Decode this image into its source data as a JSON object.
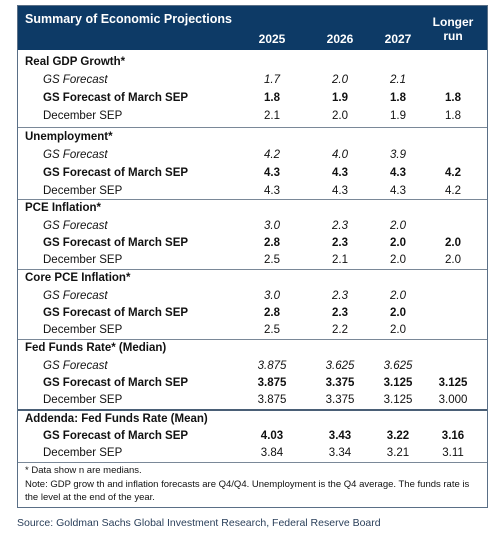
{
  "header": {
    "title": "Summary of Economic Projections",
    "columns": [
      "2025",
      "2026",
      "2027"
    ],
    "longer_run_line1": "Longer",
    "longer_run_line2": "run"
  },
  "labels": {
    "gs_forecast": "GS Forecast",
    "gs_forecast_march": "GS Forecast of March SEP",
    "december_sep": "December SEP"
  },
  "sections": [
    {
      "title": "Real GDP Growth*",
      "gs_forecast": [
        "1.7",
        "2.0",
        "2.1",
        ""
      ],
      "gs_march": [
        "1.8",
        "1.9",
        "1.8",
        "1.8"
      ],
      "december": [
        "2.1",
        "2.0",
        "1.9",
        "1.8"
      ]
    },
    {
      "title": "Unemployment*",
      "gs_forecast": [
        "4.2",
        "4.0",
        "3.9",
        ""
      ],
      "gs_march": [
        "4.3",
        "4.3",
        "4.3",
        "4.2"
      ],
      "december": [
        "4.3",
        "4.3",
        "4.3",
        "4.2"
      ]
    },
    {
      "title": "PCE Inflation*",
      "gs_forecast": [
        "3.0",
        "2.3",
        "2.0",
        ""
      ],
      "gs_march": [
        "2.8",
        "2.3",
        "2.0",
        "2.0"
      ],
      "december": [
        "2.5",
        "2.1",
        "2.0",
        "2.0"
      ]
    },
    {
      "title": "Core PCE Inflation*",
      "gs_forecast": [
        "3.0",
        "2.3",
        "2.0",
        ""
      ],
      "gs_march": [
        "2.8",
        "2.3",
        "2.0",
        ""
      ],
      "december": [
        "2.5",
        "2.2",
        "2.0",
        ""
      ]
    },
    {
      "title": "Fed Funds Rate* (Median)",
      "gs_forecast": [
        "3.875",
        "3.625",
        "3.625",
        ""
      ],
      "gs_march": [
        "3.875",
        "3.375",
        "3.125",
        "3.125"
      ],
      "december": [
        "3.875",
        "3.375",
        "3.125",
        "3.000"
      ]
    }
  ],
  "addenda": {
    "title": "Addenda: Fed Funds Rate (Mean)",
    "gs_march": [
      "4.03",
      "3.43",
      "3.22",
      "3.16"
    ],
    "december": [
      "3.84",
      "3.34",
      "3.21",
      "3.11"
    ]
  },
  "notes": {
    "line1": "* Data show n are medians.",
    "line2": "Note: GDP grow th and inflation forecasts are Q4/Q4. Unemployment is the Q4 average. The funds rate is the level at the end of the year."
  },
  "source": "Source: Goldman Sachs Global Investment Research, Federal Reserve Board"
}
